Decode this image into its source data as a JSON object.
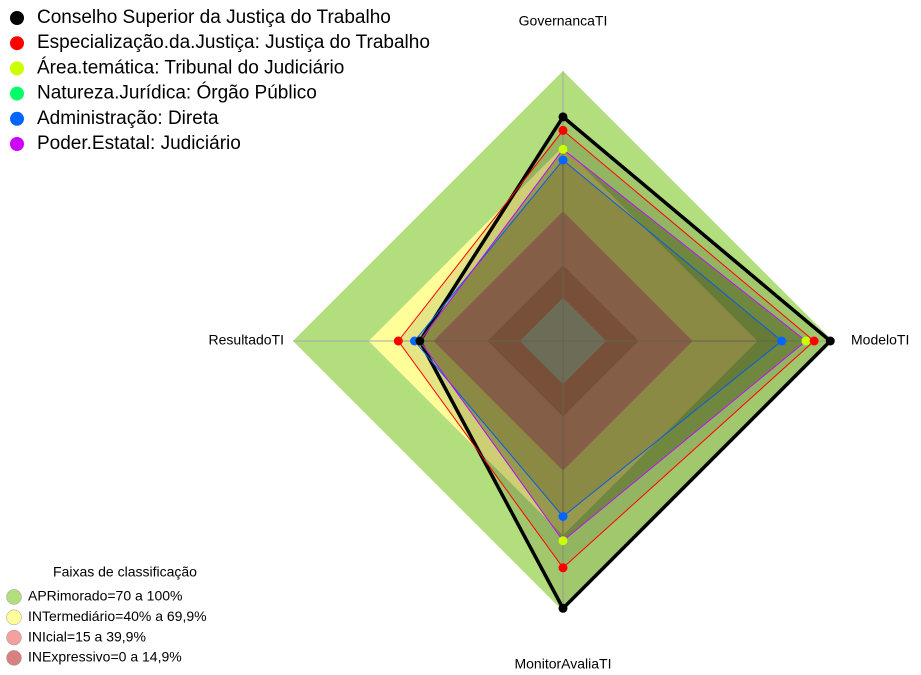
{
  "chart_data": {
    "type": "radar",
    "categories": [
      "GovernancaTI",
      "ModeloTI",
      "MonitorAvaliaTI",
      "ResultadoTI"
    ],
    "rlim": [
      0,
      100
    ],
    "series": [
      {
        "name": "Conselho Superior da Justiça do Trabalho",
        "color": "#000000",
        "values": [
          83,
          99,
          99,
          53
        ]
      },
      {
        "name": "Especialização.da.Justiça: Justiça do Trabalho",
        "color": "#ff0000",
        "values": [
          78,
          93,
          84,
          61
        ]
      },
      {
        "name": "Área.temática: Tribunal do Judiciário",
        "color": "#ccff00",
        "values": [
          71,
          90,
          74,
          53
        ]
      },
      {
        "name": "Natureza.Jurídica: Órgão Público",
        "color": "#00ff66",
        "values": [
          71,
          90,
          74,
          53
        ]
      },
      {
        "name": "Administração: Direta",
        "color": "#0066ff",
        "values": [
          67,
          81,
          65,
          55
        ]
      },
      {
        "name": "Poder.Estatal: Judiciário",
        "color": "#cc00ff",
        "values": [
          71,
          90,
          74,
          53
        ]
      }
    ],
    "bands_title": "Faixas de classificação",
    "bands": [
      {
        "label": "APRimorado=70 a 100%",
        "color": "#b3de7e",
        "outer": 100
      },
      {
        "label": "INTermediário=40% a 69,9%",
        "color": "#ffff99",
        "outer": 72
      },
      {
        "label": "INIcial=15 a 39,9%",
        "color": "#f4a0a0",
        "outer": 48
      },
      {
        "label": "INExpressivo=0 a 14,9%",
        "color": "#d98080",
        "outer": 28
      }
    ],
    "center": {
      "color": "#c0c0c0",
      "outer": 16
    }
  }
}
